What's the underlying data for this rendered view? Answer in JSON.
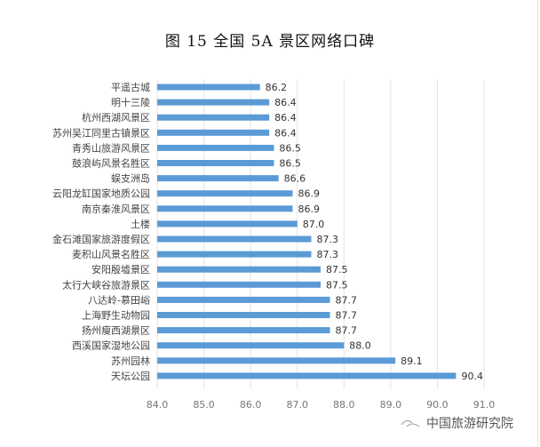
{
  "chart_data": {
    "type": "bar",
    "orientation": "horizontal",
    "title": "图 15  全国 5A 景区网络口碑",
    "categories": [
      "平遥古城",
      "明十三陵",
      "杭州西湖风景区",
      "苏州吴江同里古镇景区",
      "青秀山旅游风景区",
      "鼓浪屿风景名胜区",
      "蜈支洲岛",
      "云阳龙缸国家地质公园",
      "南京秦淮风景区",
      "土楼",
      "金石滩国家旅游度假区",
      "麦积山风景名胜区",
      "安阳殷墟景区",
      "太行大峡谷旅游景区",
      "八达岭-慕田峪",
      "上海野生动物园",
      "扬州瘦西湖景区",
      "西溪国家湿地公园",
      "苏州园林",
      "天坛公园"
    ],
    "values": [
      86.2,
      86.4,
      86.4,
      86.4,
      86.5,
      86.5,
      86.6,
      86.9,
      86.9,
      87.0,
      87.3,
      87.3,
      87.5,
      87.5,
      87.7,
      87.7,
      87.7,
      88.0,
      89.1,
      90.4
    ],
    "xlim": [
      84.0,
      91.0
    ],
    "xticks": [
      "84.0",
      "85.0",
      "86.0",
      "87.0",
      "88.0",
      "89.0",
      "90.0",
      "91.0"
    ],
    "grid": true,
    "bar_color": "#5b9bd5"
  },
  "watermark": "中国旅游研究院"
}
